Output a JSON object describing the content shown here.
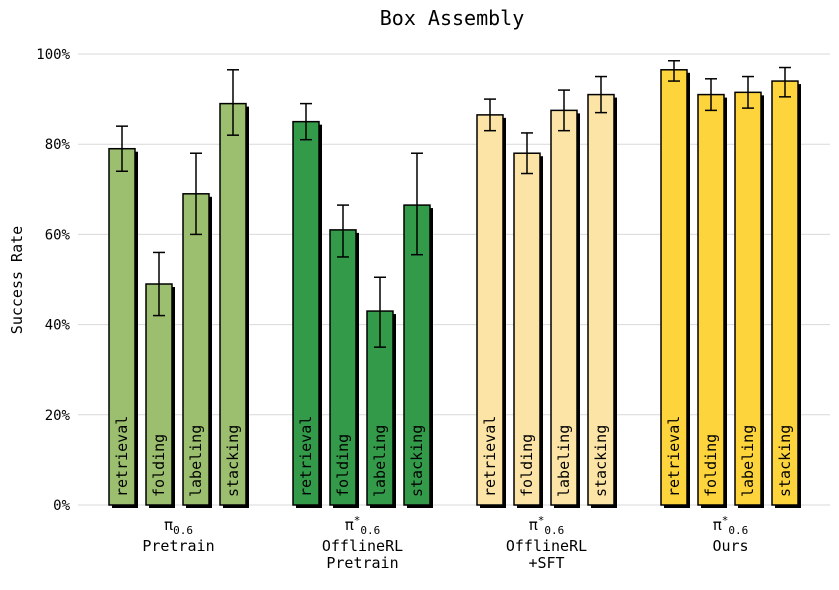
{
  "chart_data": {
    "type": "bar",
    "title": "Box Assembly",
    "ylabel": "Success Rate",
    "ylim": [
      0,
      100
    ],
    "yticks": [
      "0%",
      "20%",
      "40%",
      "60%",
      "80%",
      "100%"
    ],
    "groups": [
      {
        "label_symbol": "π",
        "label_star": "",
        "label_sub": "0.6",
        "label_lines": [
          "Pretrain"
        ],
        "color": "#9bbf6e",
        "bars": [
          {
            "label": "retrieval",
            "value": 79,
            "err_low": 74,
            "err_high": 84
          },
          {
            "label": "folding",
            "value": 49,
            "err_low": 42,
            "err_high": 56
          },
          {
            "label": "labeling",
            "value": 69,
            "err_low": 60,
            "err_high": 78
          },
          {
            "label": "stacking",
            "value": 89,
            "err_low": 82,
            "err_high": 96.5
          }
        ]
      },
      {
        "label_symbol": "π",
        "label_star": "*",
        "label_sub": "0.6",
        "label_lines": [
          "OfflineRL",
          "Pretrain"
        ],
        "color": "#339a49",
        "bars": [
          {
            "label": "retrieval",
            "value": 85,
            "err_low": 81,
            "err_high": 89
          },
          {
            "label": "folding",
            "value": 61,
            "err_low": 55,
            "err_high": 66.5
          },
          {
            "label": "labeling",
            "value": 43,
            "err_low": 35,
            "err_high": 50.5
          },
          {
            "label": "stacking",
            "value": 66.5,
            "err_low": 55.5,
            "err_high": 78
          }
        ]
      },
      {
        "label_symbol": "π",
        "label_star": "*",
        "label_sub": "0.6",
        "label_lines": [
          "OfflineRL",
          "+SFT"
        ],
        "color": "#fbe4a6",
        "bars": [
          {
            "label": "retrieval",
            "value": 86.5,
            "err_low": 83,
            "err_high": 90
          },
          {
            "label": "folding",
            "value": 78,
            "err_low": 73.5,
            "err_high": 82.5
          },
          {
            "label": "labeling",
            "value": 87.5,
            "err_low": 83,
            "err_high": 92
          },
          {
            "label": "stacking",
            "value": 91,
            "err_low": 87,
            "err_high": 95
          }
        ]
      },
      {
        "label_symbol": "π",
        "label_star": "*",
        "label_sub": "0.6",
        "label_lines": [
          "Ours"
        ],
        "color": "#fdd43c",
        "bars": [
          {
            "label": "retrieval",
            "value": 96.5,
            "err_low": 94,
            "err_high": 98.5
          },
          {
            "label": "folding",
            "value": 91,
            "err_low": 87.5,
            "err_high": 94.5
          },
          {
            "label": "labeling",
            "value": 91.5,
            "err_low": 88,
            "err_high": 95
          },
          {
            "label": "stacking",
            "value": 94,
            "err_low": 90.5,
            "err_high": 97
          }
        ]
      }
    ]
  }
}
